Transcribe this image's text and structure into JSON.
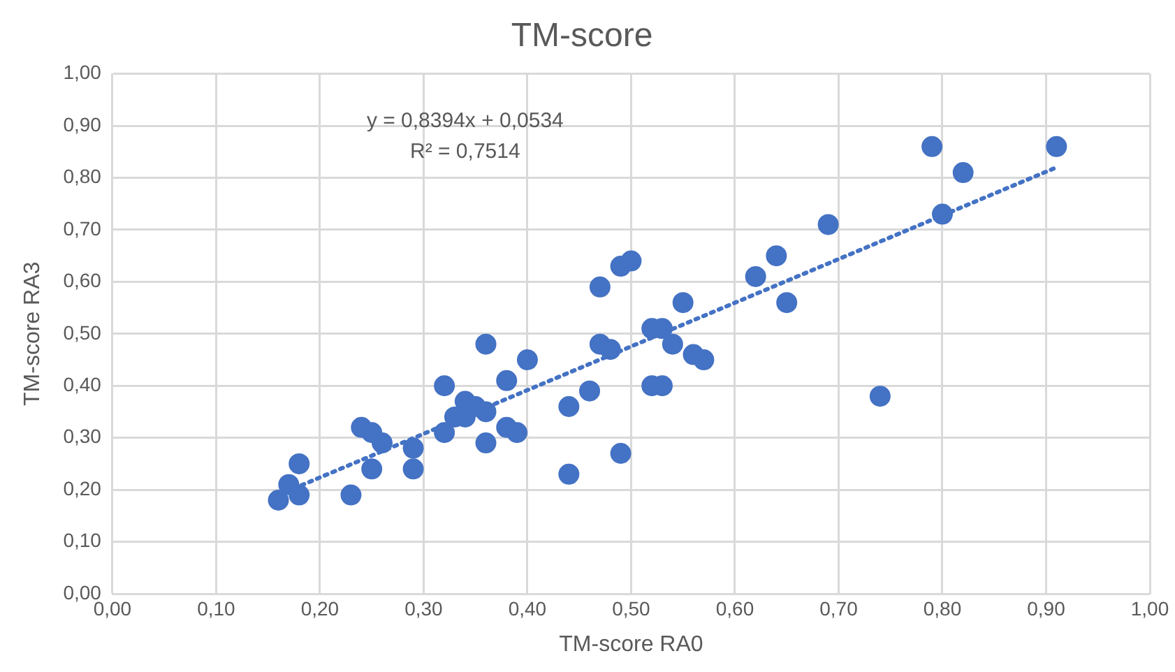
{
  "chart_data": {
    "type": "scatter",
    "title": "TM-score",
    "xlabel": "TM-score RA0",
    "ylabel": "TM-score RA3",
    "annotations": [
      "y = 0,8394x + 0,0534",
      "R² = 0,7514"
    ],
    "xlim": [
      0,
      1
    ],
    "ylim": [
      0,
      1
    ],
    "xticks": [
      {
        "value": 0,
        "label": "0,00"
      },
      {
        "value": 0.1,
        "label": "0,10"
      },
      {
        "value": 0.2,
        "label": "0,20"
      },
      {
        "value": 0.3,
        "label": "0,30"
      },
      {
        "value": 0.4,
        "label": "0,40"
      },
      {
        "value": 0.5,
        "label": "0,50"
      },
      {
        "value": 0.6,
        "label": "0,60"
      },
      {
        "value": 0.7,
        "label": "0,70"
      },
      {
        "value": 0.8,
        "label": "0,80"
      },
      {
        "value": 0.9,
        "label": "0,90"
      },
      {
        "value": 1,
        "label": "1,00"
      }
    ],
    "yticks": [
      {
        "value": 0,
        "label": "0,00"
      },
      {
        "value": 0.1,
        "label": "0,10"
      },
      {
        "value": 0.2,
        "label": "0,20"
      },
      {
        "value": 0.3,
        "label": "0,30"
      },
      {
        "value": 0.4,
        "label": "0,40"
      },
      {
        "value": 0.5,
        "label": "0,50"
      },
      {
        "value": 0.6,
        "label": "0,60"
      },
      {
        "value": 0.7,
        "label": "0,70"
      },
      {
        "value": 0.8,
        "label": "0,80"
      },
      {
        "value": 0.9,
        "label": "0,90"
      },
      {
        "value": 1,
        "label": "1,00"
      }
    ],
    "grid": true,
    "legend": false,
    "series": [
      {
        "color": "#4472c4",
        "marker": "circle",
        "x": [
          0.16,
          0.17,
          0.18,
          0.18,
          0.23,
          0.24,
          0.25,
          0.25,
          0.26,
          0.29,
          0.29,
          0.32,
          0.32,
          0.33,
          0.34,
          0.34,
          0.35,
          0.36,
          0.36,
          0.36,
          0.38,
          0.38,
          0.39,
          0.4,
          0.44,
          0.44,
          0.46,
          0.47,
          0.47,
          0.48,
          0.49,
          0.49,
          0.5,
          0.52,
          0.52,
          0.53,
          0.53,
          0.54,
          0.55,
          0.56,
          0.57,
          0.62,
          0.64,
          0.65,
          0.69,
          0.74,
          0.79,
          0.8,
          0.82,
          0.91
        ],
        "values": [
          0.18,
          0.21,
          0.25,
          0.19,
          0.19,
          0.32,
          0.31,
          0.24,
          0.29,
          0.28,
          0.24,
          0.4,
          0.31,
          0.34,
          0.37,
          0.34,
          0.36,
          0.35,
          0.48,
          0.29,
          0.41,
          0.32,
          0.31,
          0.45,
          0.36,
          0.23,
          0.39,
          0.59,
          0.48,
          0.47,
          0.63,
          0.27,
          0.64,
          0.51,
          0.4,
          0.51,
          0.4,
          0.48,
          0.56,
          0.46,
          0.45,
          0.61,
          0.65,
          0.56,
          0.71,
          0.38,
          0.86,
          0.73,
          0.81,
          0.86
        ]
      },
      {
        "type": "line",
        "color": "#4472c4",
        "line_style": "dotted",
        "marker": "none",
        "x": [
          0.16,
          0.91
        ],
        "values": [
          0.19,
          0.82
        ]
      }
    ]
  }
}
